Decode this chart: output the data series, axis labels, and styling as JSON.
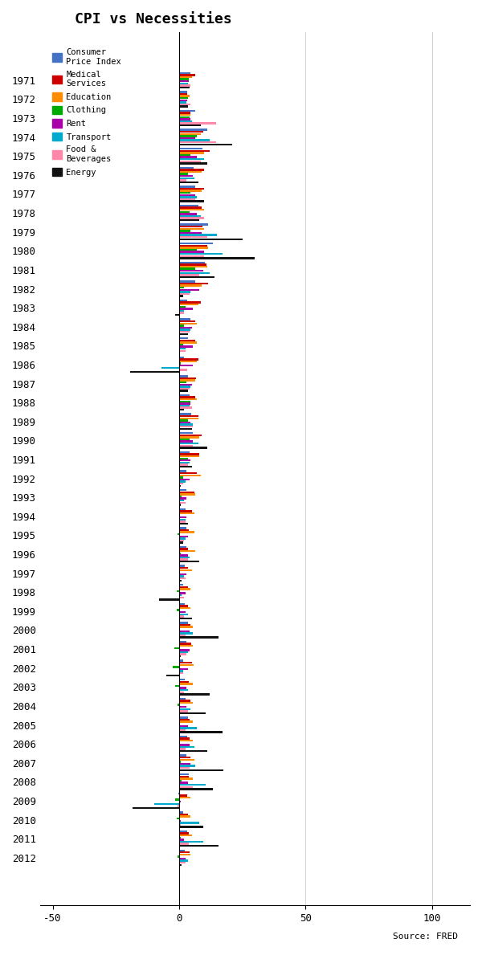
{
  "title": "CPI vs Necessities",
  "source": "Source: FRED",
  "years": [
    1971,
    1972,
    1973,
    1974,
    1975,
    1976,
    1977,
    1978,
    1979,
    1980,
    1981,
    1982,
    1983,
    1984,
    1985,
    1986,
    1987,
    1988,
    1989,
    1990,
    1991,
    1992,
    1993,
    1994,
    1995,
    1996,
    1997,
    1998,
    1999,
    2000,
    2001,
    2002,
    2003,
    2004,
    2005,
    2006,
    2007,
    2008,
    2009,
    2010,
    2011,
    2012
  ],
  "series": {
    "CPI": [
      4.3,
      3.3,
      6.2,
      11.0,
      9.1,
      5.8,
      6.5,
      7.6,
      11.3,
      13.5,
      10.3,
      6.2,
      3.2,
      4.3,
      3.6,
      1.9,
      3.6,
      4.1,
      4.8,
      5.4,
      4.2,
      3.0,
      3.0,
      2.6,
      2.8,
      3.0,
      2.3,
      1.6,
      2.2,
      3.4,
      2.8,
      1.6,
      2.3,
      2.7,
      3.4,
      3.2,
      2.8,
      3.8,
      -0.4,
      1.6,
      3.2,
      2.1
    ],
    "Medical": [
      6.5,
      3.2,
      4.5,
      9.5,
      12.0,
      10.0,
      9.9,
      9.0,
      9.2,
      11.0,
      10.7,
      11.5,
      8.7,
      6.2,
      6.5,
      7.7,
      6.6,
      6.5,
      7.7,
      9.0,
      7.9,
      7.1,
      5.9,
      5.2,
      3.9,
      3.5,
      3.5,
      3.4,
      3.6,
      4.6,
      4.7,
      5.0,
      3.7,
      4.4,
      4.2,
      4.0,
      4.4,
      3.7,
      3.2,
      3.4,
      3.9,
      4.0
    ],
    "Education": [
      5.0,
      4.0,
      4.5,
      8.5,
      10.0,
      9.0,
      9.0,
      10.0,
      10.0,
      11.5,
      11.0,
      9.0,
      7.5,
      7.0,
      7.0,
      7.0,
      6.5,
      7.0,
      7.5,
      8.0,
      8.0,
      8.5,
      6.5,
      6.0,
      6.0,
      6.5,
      5.0,
      4.5,
      4.5,
      5.5,
      5.5,
      5.8,
      5.5,
      5.5,
      5.5,
      5.5,
      6.0,
      5.5,
      4.5,
      4.5,
      5.0,
      4.5
    ],
    "Clothing": [
      3.8,
      3.5,
      4.0,
      7.0,
      4.5,
      3.5,
      4.5,
      4.0,
      4.5,
      7.0,
      6.5,
      2.0,
      2.5,
      2.0,
      1.5,
      0.5,
      3.0,
      4.5,
      3.5,
      4.0,
      3.5,
      1.5,
      1.0,
      0.0,
      -0.5,
      0.5,
      0.0,
      -1.0,
      -1.0,
      0.0,
      -2.0,
      -2.5,
      -1.5,
      -0.5,
      0.0,
      0.0,
      0.5,
      1.0,
      -1.5,
      -1.0,
      0.5,
      -0.5
    ],
    "Rent": [
      3.8,
      3.2,
      4.5,
      6.5,
      7.0,
      5.5,
      6.5,
      7.0,
      9.0,
      10.0,
      9.5,
      8.0,
      5.5,
      5.0,
      5.5,
      5.5,
      5.0,
      4.5,
      4.5,
      5.5,
      4.5,
      4.0,
      3.0,
      3.0,
      3.5,
      3.5,
      3.0,
      2.5,
      2.5,
      4.0,
      4.0,
      3.5,
      3.0,
      3.0,
      3.5,
      4.0,
      4.5,
      3.5,
      0.5,
      0.5,
      2.0,
      2.5
    ],
    "Transport": [
      3.5,
      3.0,
      5.0,
      12.0,
      10.0,
      6.0,
      7.0,
      8.5,
      15.0,
      17.0,
      12.0,
      4.5,
      2.0,
      4.5,
      2.5,
      -7.0,
      4.5,
      4.0,
      5.5,
      7.5,
      4.0,
      2.5,
      2.0,
      2.5,
      2.5,
      4.0,
      2.0,
      1.0,
      3.5,
      5.5,
      3.5,
      1.5,
      3.5,
      4.5,
      7.0,
      6.0,
      6.5,
      10.5,
      -10.0,
      8.0,
      9.5,
      3.5
    ],
    "Food": [
      4.3,
      4.3,
      14.5,
      14.5,
      8.5,
      3.0,
      6.5,
      10.0,
      11.0,
      10.0,
      7.8,
      4.0,
      2.0,
      4.0,
      2.5,
      3.2,
      4.0,
      5.0,
      5.5,
      5.5,
      3.5,
      1.5,
      2.5,
      2.5,
      2.0,
      3.5,
      2.5,
      2.0,
      2.0,
      2.5,
      3.0,
      1.5,
      2.0,
      3.5,
      2.5,
      2.5,
      4.0,
      5.5,
      -0.5,
      0.5,
      3.7,
      2.5
    ],
    "Energy": [
      4.0,
      3.5,
      8.5,
      21.0,
      11.0,
      7.5,
      10.0,
      8.0,
      25.0,
      30.0,
      14.0,
      1.5,
      -1.5,
      3.5,
      0.0,
      -19.5,
      3.5,
      2.0,
      5.0,
      11.0,
      5.0,
      0.5,
      0.5,
      3.5,
      1.5,
      8.0,
      1.0,
      -8.0,
      5.0,
      15.5,
      0.5,
      -5.0,
      12.0,
      10.5,
      17.0,
      11.0,
      17.5,
      13.5,
      -18.5,
      9.5,
      15.5,
      0.9
    ]
  },
  "colors": {
    "CPI": "#4472C4",
    "Medical": "#CC0000",
    "Education": "#FF8C00",
    "Clothing": "#00AA00",
    "Rent": "#AA00AA",
    "Transport": "#00AACC",
    "Food": "#FF88AA",
    "Energy": "#111111"
  },
  "xlim": [
    -55,
    115
  ],
  "xticks": [
    -50,
    0,
    50,
    100
  ],
  "bar_height": 0.11,
  "figsize": [
    6.0,
    11.89
  ],
  "dpi": 100,
  "legend_labels": {
    "CPI": "Consumer\nPrice Index",
    "Medical": "Medical\nServices",
    "Education": "Education",
    "Clothing": "Clothing",
    "Rent": "Rent",
    "Transport": "Transport",
    "Food": "Food &\nBeverages",
    "Energy": "Energy"
  }
}
